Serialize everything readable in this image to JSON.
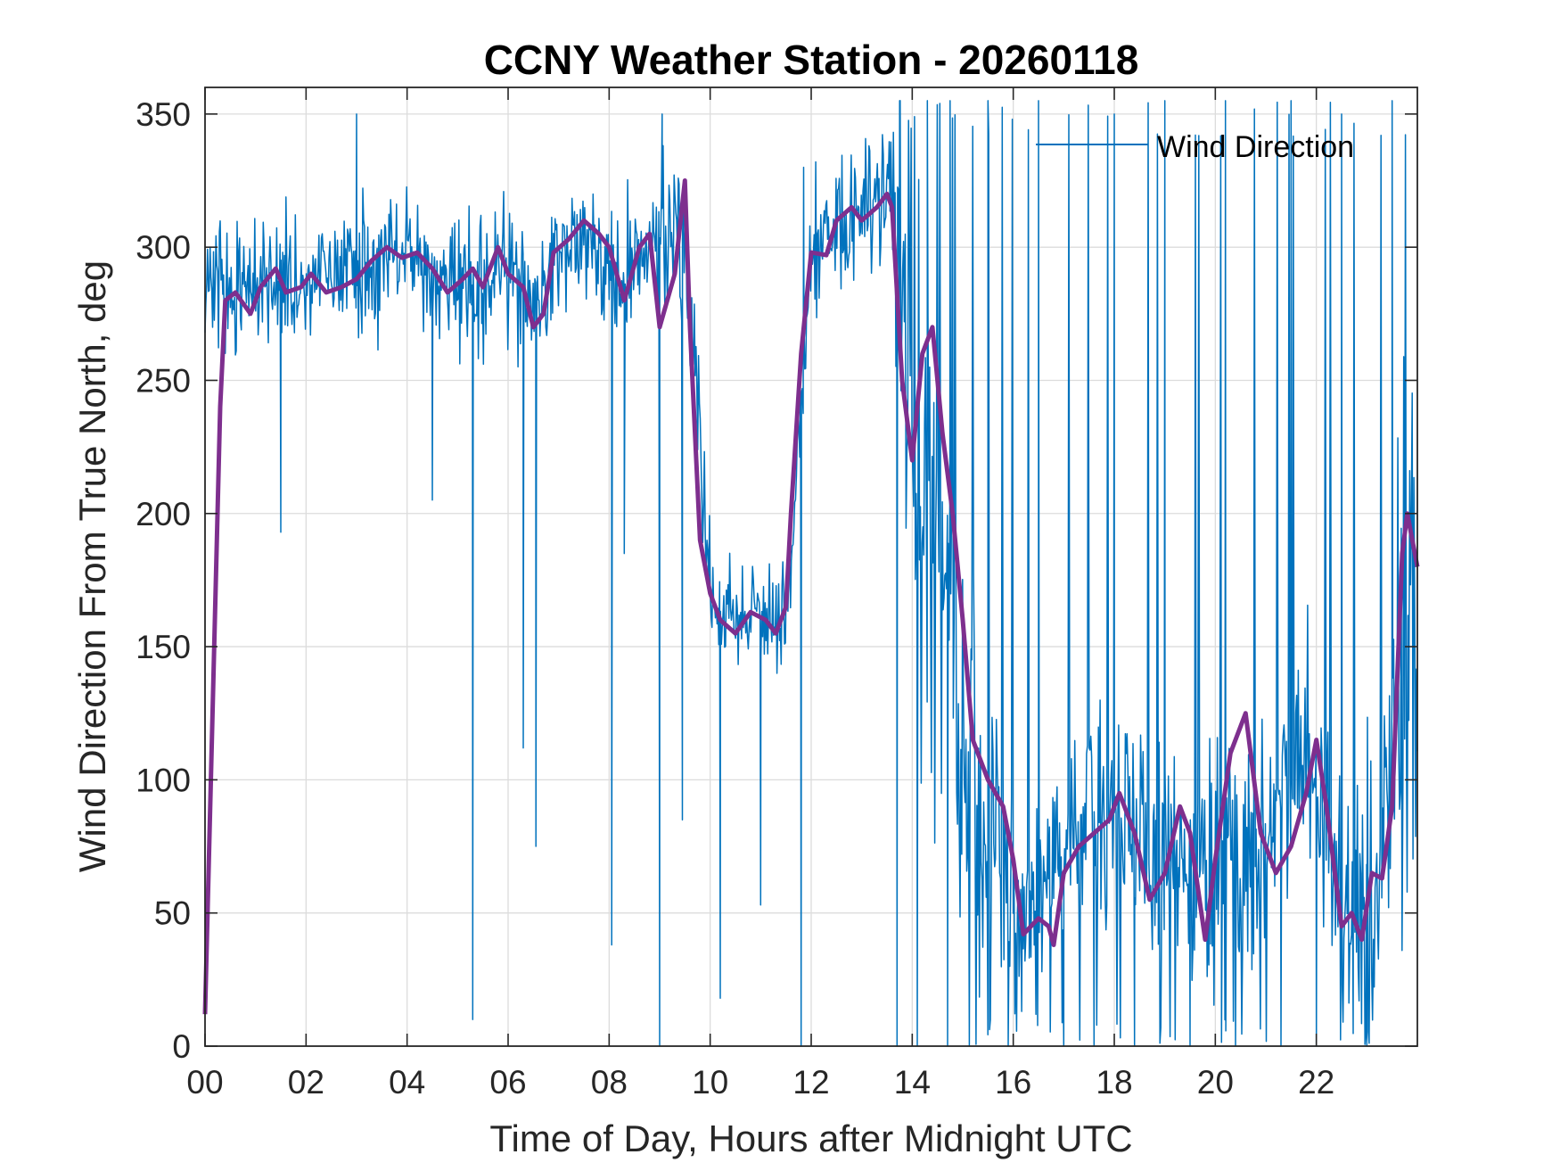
{
  "chart_data": {
    "type": "line",
    "title": "CCNY Weather Station - 20260118",
    "xlabel": "Time of Day, Hours after Midnight UTC",
    "ylabel": "Wind Direction From True North, deg",
    "xlim": [
      0,
      24
    ],
    "ylim": [
      0,
      360
    ],
    "grid": true,
    "legend_position": "top-right",
    "x_ticks": [
      0,
      2,
      4,
      6,
      8,
      10,
      12,
      14,
      16,
      18,
      20,
      22
    ],
    "x_tick_labels": [
      "00",
      "02",
      "04",
      "06",
      "08",
      "10",
      "12",
      "14",
      "16",
      "18",
      "20",
      "22"
    ],
    "y_ticks": [
      0,
      50,
      100,
      150,
      200,
      250,
      300,
      350
    ],
    "y_tick_labels": [
      "0",
      "50",
      "100",
      "150",
      "200",
      "250",
      "300",
      "350"
    ],
    "series": [
      {
        "name": "Wind Direction",
        "kind": "raw",
        "color": "#0072BD",
        "in_legend": true,
        "sample_interval_hours": 0.0167,
        "noise_note": "high-frequency 1-min samples; envelope follows the smoothed series with the given spread",
        "envelope": [
          {
            "x": 0.0,
            "center": 290,
            "spread": 25
          },
          {
            "x": 0.5,
            "center": 282,
            "spread": 28
          },
          {
            "x": 1.5,
            "center": 288,
            "spread": 25
          },
          {
            "x": 3.0,
            "center": 290,
            "spread": 25
          },
          {
            "x": 4.0,
            "center": 297,
            "spread": 25
          },
          {
            "x": 5.5,
            "center": 285,
            "spread": 28
          },
          {
            "x": 6.5,
            "center": 282,
            "spread": 28
          },
          {
            "x": 7.5,
            "center": 306,
            "spread": 22
          },
          {
            "x": 8.2,
            "center": 290,
            "spread": 35
          },
          {
            "x": 9.0,
            "center": 300,
            "spread": 30
          },
          {
            "x": 9.5,
            "center": 310,
            "spread": 30
          },
          {
            "x": 10.0,
            "center": 168,
            "spread": 25
          },
          {
            "x": 11.0,
            "center": 160,
            "spread": 22
          },
          {
            "x": 11.5,
            "center": 158,
            "spread": 22
          },
          {
            "x": 12.0,
            "center": 300,
            "spread": 30
          },
          {
            "x": 13.0,
            "center": 315,
            "spread": 30
          },
          {
            "x": 13.6,
            "center": 320,
            "spread": 35
          },
          {
            "x": 14.0,
            "center": 240,
            "spread": 110
          },
          {
            "x": 15.0,
            "center": 110,
            "spread": 80
          },
          {
            "x": 16.0,
            "center": 50,
            "spread": 60
          },
          {
            "x": 17.0,
            "center": 75,
            "spread": 40
          },
          {
            "x": 18.0,
            "center": 90,
            "spread": 40
          },
          {
            "x": 19.0,
            "center": 70,
            "spread": 40
          },
          {
            "x": 20.0,
            "center": 60,
            "spread": 50
          },
          {
            "x": 21.0,
            "center": 80,
            "spread": 45
          },
          {
            "x": 22.0,
            "center": 105,
            "spread": 50
          },
          {
            "x": 22.6,
            "center": 50,
            "spread": 45
          },
          {
            "x": 23.3,
            "center": 70,
            "spread": 60
          },
          {
            "x": 24.0,
            "center": 180,
            "spread": 160
          }
        ],
        "wrap_spikes": [
          {
            "x": 8.05,
            "y": 38
          },
          {
            "x": 8.3,
            "y": 185
          },
          {
            "x": 9.0,
            "y": 0
          },
          {
            "x": 9.05,
            "y": 350
          },
          {
            "x": 9.45,
            "y": 85
          },
          {
            "x": 10.2,
            "y": 18
          },
          {
            "x": 11.0,
            "y": 53
          },
          {
            "x": 11.8,
            "y": 0
          },
          {
            "x": 11.85,
            "y": 330
          },
          {
            "x": 13.7,
            "y": 0
          },
          {
            "x": 13.75,
            "y": 355
          },
          {
            "x": 14.1,
            "y": 0
          },
          {
            "x": 14.3,
            "y": 355
          },
          {
            "x": 14.7,
            "y": 0
          },
          {
            "x": 14.75,
            "y": 355
          },
          {
            "x": 15.5,
            "y": 355
          },
          {
            "x": 15.9,
            "y": 0
          },
          {
            "x": 16.5,
            "y": 355
          },
          {
            "x": 17.0,
            "y": 0
          },
          {
            "x": 17.6,
            "y": 0
          },
          {
            "x": 18.0,
            "y": 350
          },
          {
            "x": 18.4,
            "y": 0
          },
          {
            "x": 19.0,
            "y": 355
          },
          {
            "x": 19.5,
            "y": 0
          },
          {
            "x": 20.2,
            "y": 355
          },
          {
            "x": 20.4,
            "y": 0
          },
          {
            "x": 21.3,
            "y": 0
          },
          {
            "x": 21.5,
            "y": 355
          },
          {
            "x": 22.0,
            "y": 0
          },
          {
            "x": 22.5,
            "y": 350
          },
          {
            "x": 23.0,
            "y": 0
          },
          {
            "x": 23.5,
            "y": 355
          },
          {
            "x": 5.3,
            "y": 10
          },
          {
            "x": 6.3,
            "y": 112
          },
          {
            "x": 6.55,
            "y": 75
          },
          {
            "x": 3.0,
            "y": 350
          },
          {
            "x": 1.5,
            "y": 193
          },
          {
            "x": 4.5,
            "y": 205
          }
        ]
      },
      {
        "name": "Smoothed",
        "kind": "smoothed",
        "color": "#7E2F8E",
        "in_legend": false,
        "x": [
          0.0,
          0.3,
          0.4,
          0.6,
          0.9,
          1.1,
          1.4,
          1.6,
          1.9,
          2.1,
          2.4,
          2.7,
          3.0,
          3.3,
          3.6,
          3.9,
          4.2,
          4.5,
          4.8,
          5.1,
          5.3,
          5.5,
          5.8,
          6.0,
          6.3,
          6.5,
          6.7,
          6.9,
          7.2,
          7.5,
          7.8,
          8.0,
          8.3,
          8.6,
          8.8,
          9.0,
          9.3,
          9.5,
          9.6,
          9.8,
          10.0,
          10.2,
          10.5,
          10.8,
          11.1,
          11.3,
          11.5,
          11.6,
          11.8,
          12.0,
          12.3,
          12.5,
          12.8,
          13.0,
          13.3,
          13.5,
          13.6,
          13.8,
          14.0,
          14.2,
          14.4,
          14.6,
          14.8,
          15.0,
          15.2,
          15.5,
          15.8,
          16.0,
          16.2,
          16.5,
          16.7,
          16.8,
          17.0,
          17.3,
          17.6,
          17.9,
          18.1,
          18.4,
          18.7,
          19.0,
          19.3,
          19.5,
          19.8,
          20.0,
          20.3,
          20.6,
          20.9,
          21.2,
          21.5,
          21.8,
          22.0,
          22.2,
          22.5,
          22.7,
          22.9,
          23.1,
          23.3,
          23.5,
          23.7,
          23.8,
          24.0
        ],
        "y": [
          12,
          240,
          280,
          283,
          275,
          285,
          292,
          283,
          285,
          290,
          283,
          285,
          288,
          295,
          300,
          296,
          298,
          292,
          283,
          288,
          292,
          285,
          300,
          290,
          285,
          270,
          275,
          298,
          303,
          310,
          305,
          300,
          280,
          300,
          305,
          270,
          290,
          325,
          270,
          190,
          170,
          160,
          155,
          163,
          160,
          155,
          165,
          200,
          260,
          298,
          297,
          310,
          315,
          310,
          315,
          320,
          315,
          250,
          220,
          260,
          270,
          230,
          200,
          160,
          115,
          100,
          90,
          70,
          42,
          48,
          45,
          38,
          65,
          75,
          80,
          85,
          95,
          80,
          55,
          65,
          90,
          80,
          40,
          70,
          110,
          125,
          80,
          65,
          75,
          95,
          115,
          90,
          45,
          50,
          40,
          65,
          63,
          90,
          185,
          200,
          180
        ]
      }
    ]
  }
}
